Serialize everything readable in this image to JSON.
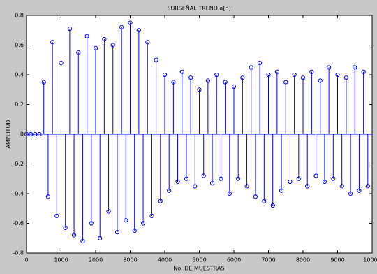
{
  "chart_data": {
    "type": "stem",
    "title": "SUBSEÑAL TREND a[n]",
    "xlabel": "No. DE MUESTRAS",
    "ylabel": "AMPLITUD",
    "x": [
      0,
      125,
      250,
      375,
      500,
      625,
      750,
      875,
      1000,
      1125,
      1250,
      1375,
      1500,
      1625,
      1750,
      1875,
      2000,
      2125,
      2250,
      2375,
      2500,
      2625,
      2750,
      2875,
      3000,
      3125,
      3250,
      3375,
      3500,
      3625,
      3750,
      3875,
      4000,
      4125,
      4250,
      4375,
      4500,
      4625,
      4750,
      4875,
      5000,
      5125,
      5250,
      5375,
      5500,
      5625,
      5750,
      5875,
      6000,
      6125,
      6250,
      6375,
      6500,
      6625,
      6750,
      6875,
      7000,
      7125,
      7250,
      7375,
      7500,
      7625,
      7750,
      7875,
      8000,
      8125,
      8250,
      8375,
      8500,
      8625,
      8750,
      8875,
      9000,
      9125,
      9250,
      9375,
      9500,
      9625,
      9750,
      9875
    ],
    "values": [
      0,
      0,
      0,
      0,
      0.35,
      -0.42,
      0.62,
      -0.55,
      0.48,
      -0.63,
      0.71,
      -0.68,
      0.55,
      -0.72,
      0.66,
      -0.6,
      0.58,
      -0.7,
      0.64,
      -0.52,
      0.6,
      -0.66,
      0.72,
      -0.58,
      0.75,
      -0.65,
      0.7,
      -0.6,
      0.62,
      -0.55,
      0.5,
      -0.45,
      0.4,
      -0.38,
      0.35,
      -0.32,
      0.42,
      -0.3,
      0.38,
      -0.35,
      0.3,
      -0.28,
      0.36,
      -0.33,
      0.4,
      -0.3,
      0.35,
      -0.4,
      0.32,
      -0.3,
      0.38,
      -0.35,
      0.45,
      -0.42,
      0.48,
      -0.45,
      0.4,
      -0.48,
      0.42,
      -0.38,
      0.35,
      -0.32,
      0.4,
      -0.3,
      0.38,
      -0.35,
      0.42,
      -0.28,
      0.36,
      -0.32,
      0.45,
      -0.3,
      0.4,
      -0.35,
      0.38,
      -0.4,
      0.45,
      -0.38,
      0.42,
      -0.35
    ],
    "color": "#0000ff",
    "xlim": [
      0,
      10000
    ],
    "xticks": [
      0,
      1000,
      2000,
      3000,
      4000,
      5000,
      6000,
      7000,
      8000,
      9000,
      10000
    ],
    "ylim": [
      -0.8,
      0.8
    ],
    "yticks": [
      -0.8,
      -0.6,
      -0.4,
      -0.2,
      0,
      0.2,
      0.4,
      0.6,
      0.8
    ]
  }
}
